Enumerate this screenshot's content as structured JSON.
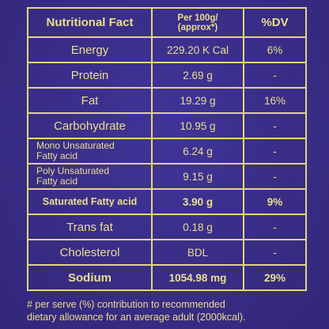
{
  "table": {
    "headers": {
      "nutrient": "Nutritional Fact",
      "per_100g_line1": "Per 100g/",
      "per_100g_line2": "(approx*)",
      "dv": "%DV"
    },
    "rows": [
      {
        "nutrient": "Energy",
        "amount": "229.20 K Cal",
        "dv": "6%"
      },
      {
        "nutrient": "Protein",
        "amount": "2.69 g",
        "dv": "-"
      },
      {
        "nutrient": "Fat",
        "amount": "19.29 g",
        "dv": "16%"
      },
      {
        "nutrient": "Carbohydrate",
        "amount": "10.95 g",
        "dv": "-"
      },
      {
        "nutrient_line1": "Mono Unsaturated",
        "nutrient_line2": "Fatty acid",
        "amount": "6.24 g",
        "dv": "-"
      },
      {
        "nutrient_line1": "Poly Unsaturated",
        "nutrient_line2": "Fatty acid",
        "amount": "9.15 g",
        "dv": "-"
      },
      {
        "nutrient": "Saturated Fatty acid",
        "amount": "3.90 g",
        "dv": "9%"
      },
      {
        "nutrient": "Trans fat",
        "amount": "0.18 g",
        "dv": "-"
      },
      {
        "nutrient": "Cholesterol",
        "amount": "BDL",
        "dv": "-"
      },
      {
        "nutrient": "Sodium",
        "amount": "1054.98 mg",
        "dv": "29%"
      }
    ]
  },
  "footnote": {
    "line1": "# per serve (%) contribution to recommended",
    "line2": "dietary allowance for an average adult (2000kcal)."
  },
  "colors": {
    "background": "#3a2f86",
    "text": "#eadf8e",
    "border": "#e2d67f"
  }
}
